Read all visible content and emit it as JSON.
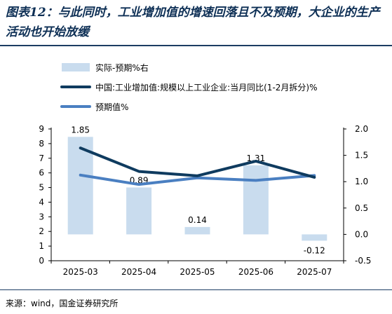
{
  "title": "图表12：与此同时，工业增加值的增速回落且不及预期，大企业的生产活动也开始放缓",
  "source": "来源：wind，国金证券研究所",
  "colors": {
    "title": "#0d2f55",
    "bar": "#c9dcee",
    "line_actual": "#0f3b5f",
    "line_expected": "#4a7fc1",
    "rule": "#1c3c63"
  },
  "chart_data": {
    "type": "bar+line",
    "categories": [
      "2025-03",
      "2025-04",
      "2025-05",
      "2025-06",
      "2025-07"
    ],
    "legend": {
      "placement": "top-left",
      "entries": [
        "实际-预期%右",
        "中国:工业增加值:规模以上工业企业:当月同比(1-2月拆分)%",
        "预期值%"
      ]
    },
    "series": [
      {
        "name": "实际-预期%右",
        "type": "bar",
        "axis": "right",
        "values": [
          1.85,
          0.89,
          0.14,
          1.31,
          -0.12
        ],
        "labels": [
          "1.85",
          "0.89",
          "0.14",
          "1.31",
          "-0.12"
        ]
      },
      {
        "name": "中国:工业增加值:规模以上工业企业:当月同比(1-2月拆分)%",
        "type": "line",
        "axis": "left",
        "values": [
          7.7,
          6.1,
          5.8,
          6.8,
          5.7
        ]
      },
      {
        "name": "预期值%",
        "type": "line",
        "axis": "left",
        "values": [
          5.85,
          5.21,
          5.66,
          5.49,
          5.82
        ]
      }
    ],
    "y_left": {
      "min": 0,
      "max": 9,
      "ticks": [
        "0",
        "1",
        "2",
        "3",
        "4",
        "5",
        "6",
        "7",
        "8",
        "9"
      ]
    },
    "y_right": {
      "min": -0.5,
      "max": 2.0,
      "ticks": [
        "-0.5",
        "0.0",
        "0.5",
        "1.0",
        "1.5",
        "2.0"
      ]
    },
    "grid": false
  }
}
